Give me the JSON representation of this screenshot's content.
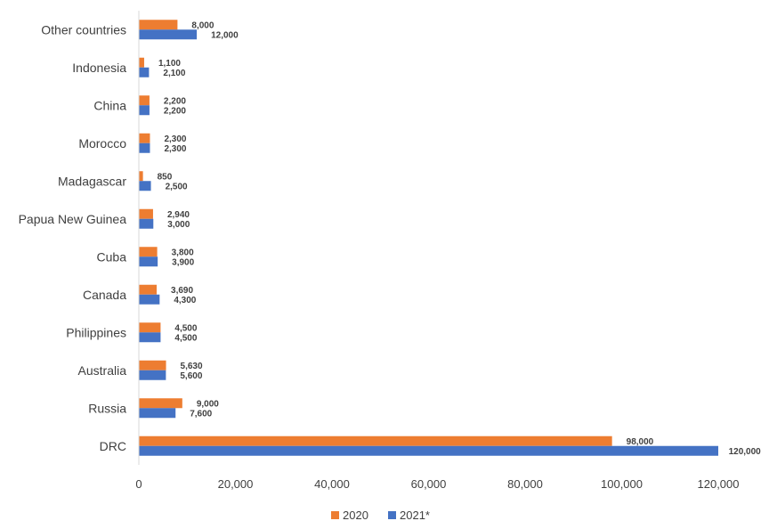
{
  "chart_data": {
    "type": "bar",
    "orientation": "horizontal",
    "categories": [
      "Other countries",
      "Indonesia",
      "China",
      "Morocco",
      "Madagascar",
      "Papua New Guinea",
      "Cuba",
      "Canada",
      "Philippines",
      "Australia",
      "Russia",
      "DRC"
    ],
    "series": [
      {
        "name": "2020",
        "color": "#ED7D31",
        "values": [
          8000,
          1100,
          2200,
          2300,
          850,
          2940,
          3800,
          3690,
          4500,
          5630,
          9000,
          98000
        ],
        "labels": [
          "8,000",
          "1,100",
          "2,200",
          "2,300",
          "850",
          "2,940",
          "3,800",
          "3,690",
          "4,500",
          "5,630",
          "9,000",
          "98,000"
        ]
      },
      {
        "name": "2021*",
        "color": "#4472C4",
        "values": [
          12000,
          2100,
          2200,
          2300,
          2500,
          3000,
          3900,
          4300,
          4500,
          5600,
          7600,
          120000
        ],
        "labels": [
          "12,000",
          "2,100",
          "2,200",
          "2,300",
          "2,500",
          "3,000",
          "3,900",
          "4,300",
          "4,500",
          "5,600",
          "7,600",
          "120,000"
        ]
      }
    ],
    "xlim": [
      0,
      120000
    ],
    "xticks": [
      0,
      20000,
      40000,
      60000,
      80000,
      100000,
      120000
    ],
    "xtick_labels": [
      "0",
      "20,000",
      "40,000",
      "60,000",
      "80,000",
      "100,000",
      "120,000"
    ],
    "grid": false,
    "legend_position": "bottom",
    "title": "",
    "xlabel": "",
    "ylabel": ""
  }
}
